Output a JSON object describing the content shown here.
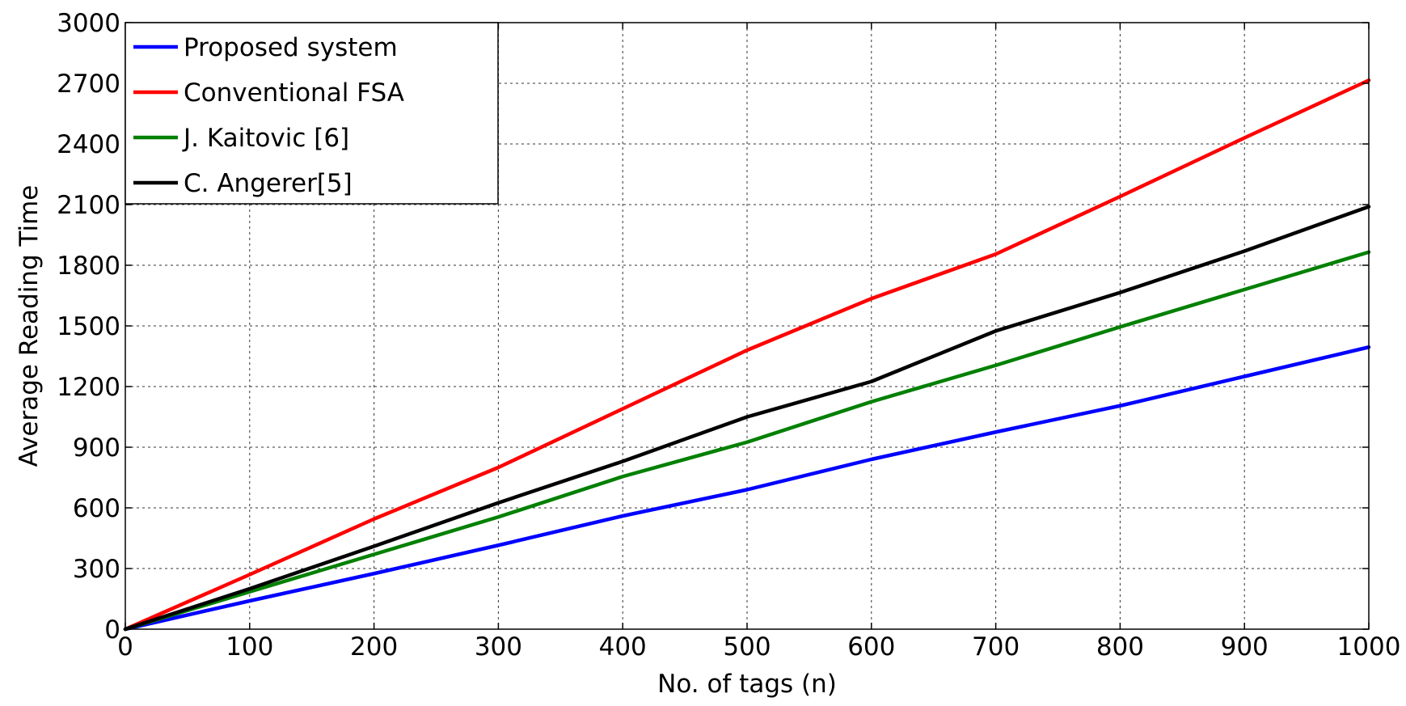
{
  "chart_data": {
    "type": "line",
    "title": "",
    "xlabel": "No. of tags (n)",
    "ylabel": "Average Reading Time",
    "xlim": [
      0,
      1000
    ],
    "ylim": [
      0,
      3000
    ],
    "xticks": [
      0,
      100,
      200,
      300,
      400,
      500,
      600,
      700,
      800,
      900,
      1000
    ],
    "yticks": [
      0,
      300,
      600,
      900,
      1200,
      1500,
      1800,
      2100,
      2400,
      2700,
      3000
    ],
    "grid": true,
    "legend_position": "top-left",
    "x": [
      0,
      100,
      200,
      300,
      400,
      500,
      600,
      700,
      800,
      900,
      1000
    ],
    "series": [
      {
        "name": "Proposed system",
        "color": "#0000ff",
        "values": [
          0,
          140,
          275,
          415,
          560,
          690,
          840,
          975,
          1105,
          1250,
          1395
        ]
      },
      {
        "name": "Conventional FSA",
        "color": "#ff0000",
        "values": [
          0,
          270,
          545,
          800,
          1090,
          1380,
          1635,
          1855,
          2140,
          2430,
          2715
        ]
      },
      {
        "name": " J. Kaitovic [6]",
        "color": "#008000",
        "values": [
          0,
          185,
          370,
          555,
          755,
          925,
          1125,
          1305,
          1495,
          1680,
          1865
        ]
      },
      {
        "name": "C. Angerer[5]",
        "color": "#000000",
        "values": [
          0,
          200,
          410,
          625,
          830,
          1050,
          1225,
          1475,
          1665,
          1870,
          2090
        ]
      }
    ]
  }
}
